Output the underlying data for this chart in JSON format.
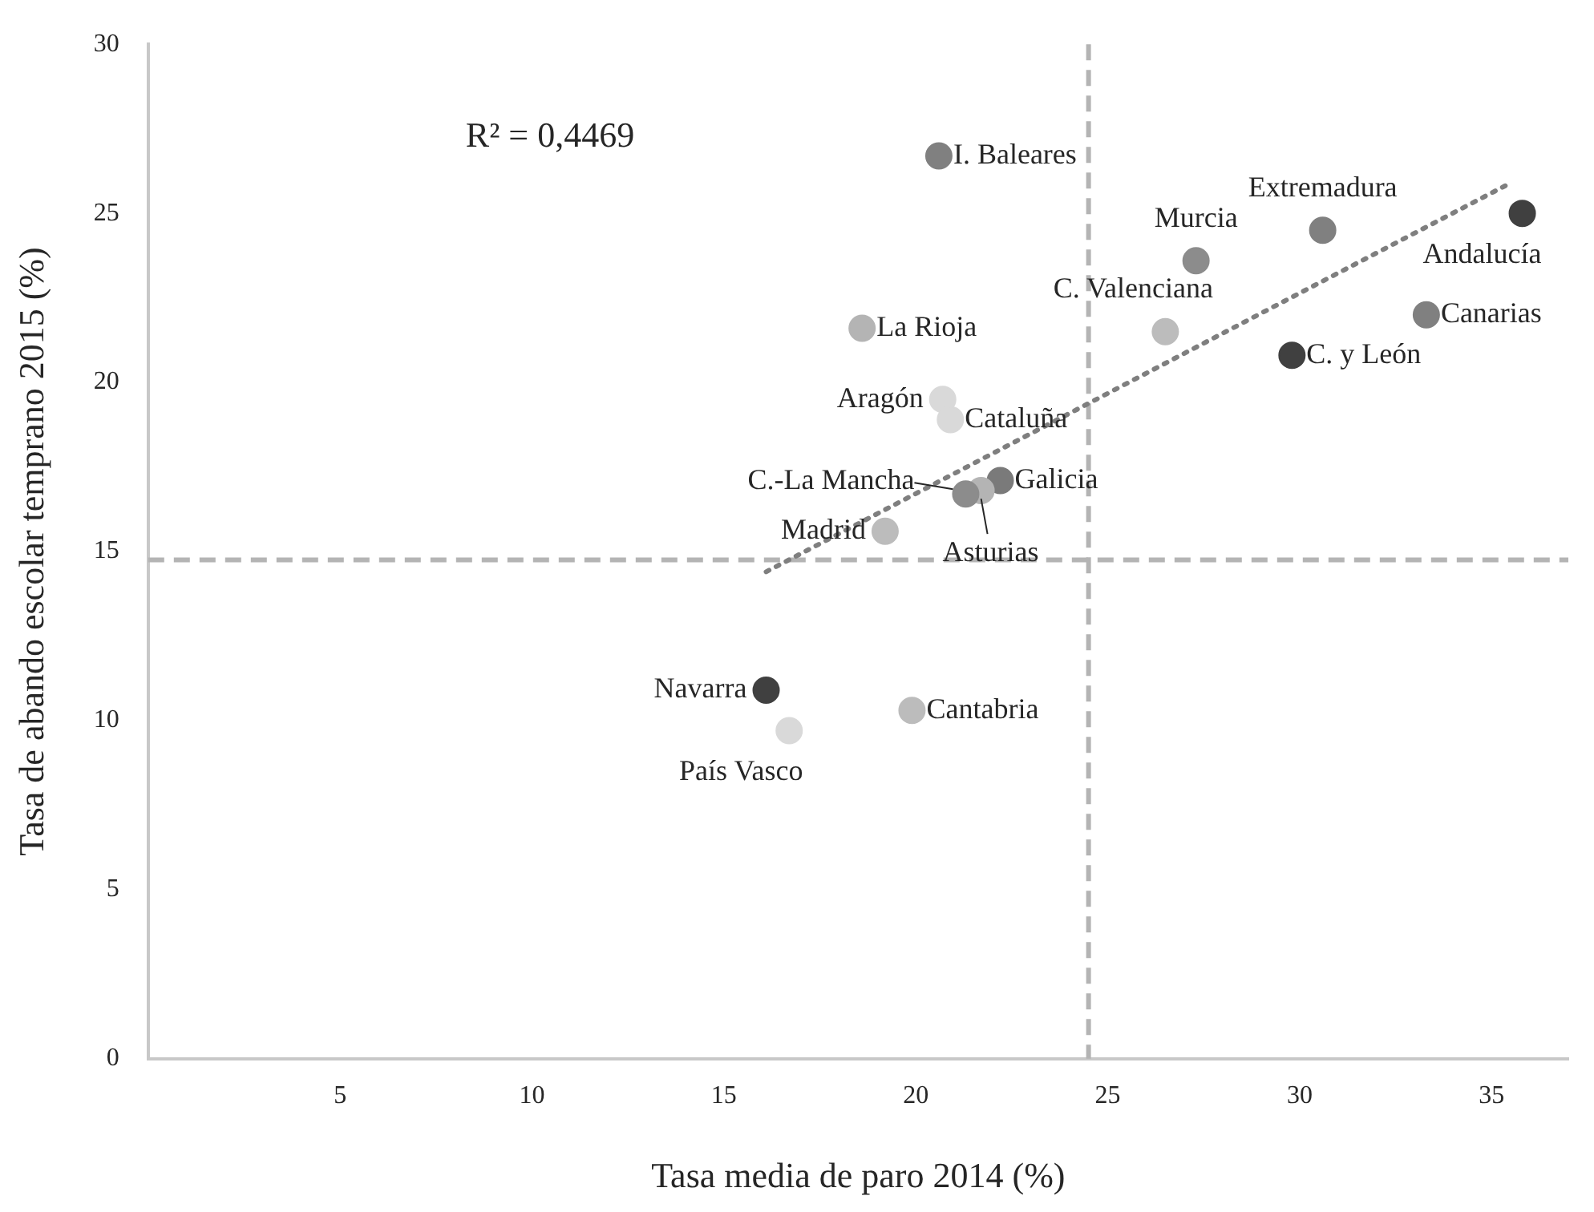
{
  "chart_data": {
    "type": "scatter",
    "xlabel": "Tasa media de paro 2014 (%)",
    "ylabel": "Tasa de abando escolar temprano 2015 (%)",
    "annotations": [
      "R² = 0,4469"
    ],
    "xlim": [
      0,
      37
    ],
    "xticks": [
      5,
      10,
      15,
      20,
      25,
      30,
      35
    ],
    "ylim": [
      0,
      30
    ],
    "yticks": [
      0,
      5,
      10,
      15,
      20,
      25,
      30
    ],
    "grid": false,
    "legend": false,
    "marker": "circle",
    "ref_lines": [
      {
        "axis": "x",
        "value": 24.5,
        "color": "#b4b4b4",
        "line_style": "dashed"
      },
      {
        "axis": "y",
        "value": 14.75,
        "color": "#b4b4b4",
        "line_style": "dashed"
      }
    ],
    "series": [
      {
        "x": [
          35.8,
          30.6,
          20.6,
          27.3,
          33.3,
          18.6,
          26.5,
          29.8,
          20.7,
          20.9,
          22.2,
          21.7,
          21.3,
          19.2,
          19.9,
          16.1,
          16.7
        ],
        "values": [
          25.0,
          24.5,
          26.7,
          23.6,
          22.0,
          21.6,
          21.5,
          20.8,
          19.5,
          18.9,
          17.1,
          16.8,
          16.7,
          15.6,
          10.3,
          10.9,
          9.7
        ],
        "colors": [
          "#404040",
          "#808080",
          "#808080",
          "#8c8c8c",
          "#808080",
          "#b4b4b4",
          "#bcbcbc",
          "#404040",
          "#d9d9d9",
          "#d9d9d9",
          "#7a7a7a",
          "#b4b4b4",
          "#8c8c8c",
          "#bcbcbc",
          "#bcbcbc",
          "#404040",
          "#d9d9d9"
        ],
        "value_labels": [
          "Andalucía",
          "Extremadura",
          "I. Baleares",
          "Murcia",
          "Canarias",
          "La Rioja",
          "C. Valenciana",
          "C. y León",
          "Aragón",
          "Cataluña",
          "Galicia",
          "Asturias",
          "C.-La Mancha",
          "Madrid",
          "Cantabria",
          "Navarra",
          "País Vasco"
        ]
      },
      {
        "type": "line",
        "color": "#7f7f7f",
        "line_style": "dotted",
        "marker": "none",
        "x": [
          16.1,
          35.5
        ],
        "values": [
          14.4,
          25.9
        ]
      }
    ]
  }
}
